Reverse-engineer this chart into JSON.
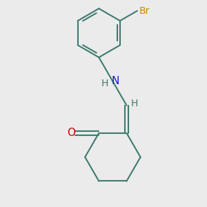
{
  "bg_color": "#EBEBEB",
  "bond_color": "#3d7a6e",
  "bond_width": 1.5,
  "N_color": "#1a1acc",
  "O_color": "#cc0000",
  "Br_color": "#cc8800",
  "font_size_atom": 10,
  "font_size_br": 10,
  "xlim": [
    -1.6,
    2.2
  ],
  "ylim": [
    -2.9,
    2.7
  ]
}
